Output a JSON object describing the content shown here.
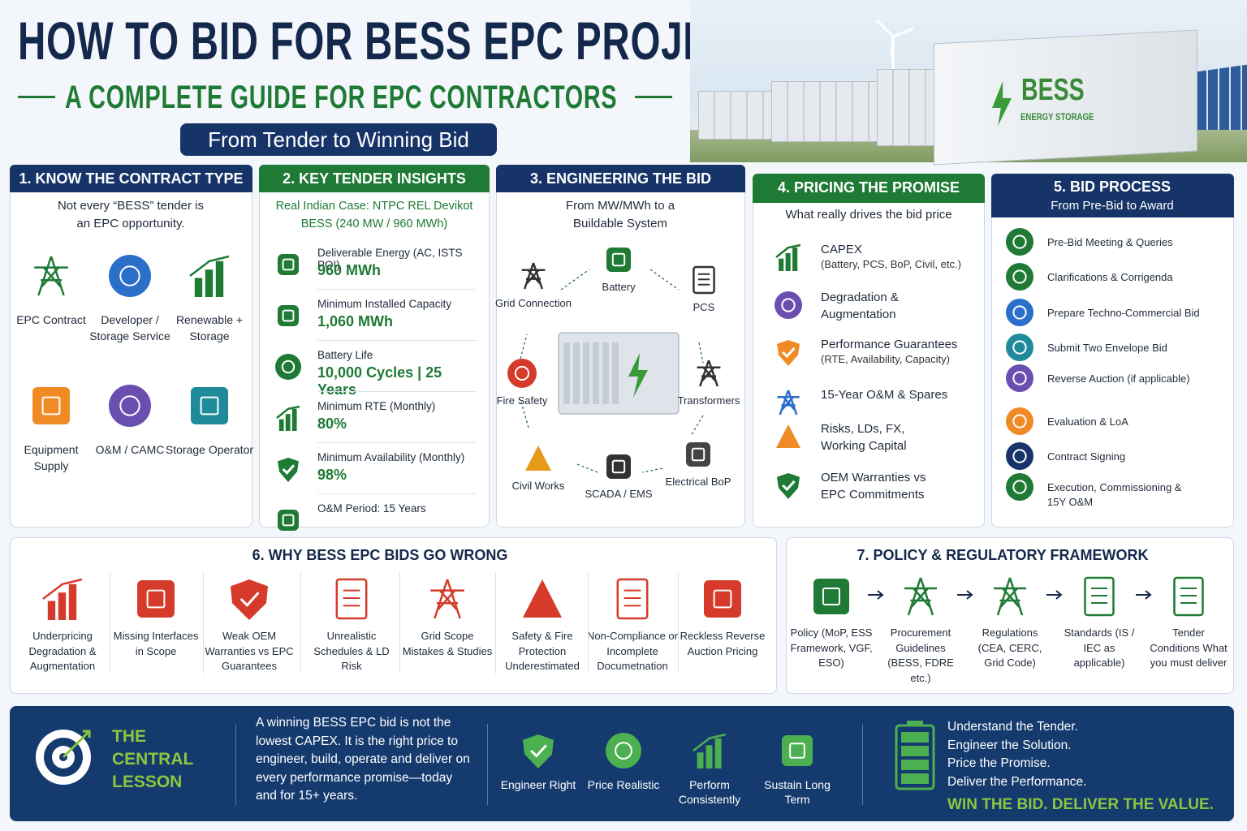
{
  "header": {
    "title": "HOW TO BID FOR BESS EPC PROJECTS",
    "subtitle": "A COMPLETE GUIDE FOR EPC CONTRACTORS",
    "tagline": "From Tender to Winning Bid",
    "image_label": "BESS",
    "image_sublabel": "ENERGY STORAGE"
  },
  "contract_types": {
    "title": "1. KNOW THE CONTRACT TYPE",
    "intro": "Not every “BESS” tender is an EPC opportunity.",
    "items": [
      "EPC Contract",
      "Developer / Storage Service",
      "Renewable + Storage",
      "Equipment Supply",
      "O&M / CAMC",
      "Storage Operator"
    ]
  },
  "tender_insights": {
    "title": "2. KEY TENDER INSIGHTS",
    "case": "Real Indian Case: NTPC REL Devikot BESS (240 MW / 960 MWh)",
    "items": [
      {
        "label": "Deliverable Energy (AC, ISTS POI)",
        "value": "960 MWh"
      },
      {
        "label": "Minimum Installed Capacity",
        "value": "1,060 MWh"
      },
      {
        "label": "Battery Life",
        "value": "10,000 Cycles | 25 Years"
      },
      {
        "label": "Minimum RTE (Monthly)",
        "value": "80%"
      },
      {
        "label": "Minimum Availability (Monthly)",
        "value": "98%"
      },
      {
        "label": "O&M Period: 15 Years"
      }
    ]
  },
  "engineering": {
    "title": "3. ENGINEERING THE BID",
    "intro": "From MW/MWh to a Buildable System",
    "components": [
      "Grid Connection",
      "Battery",
      "PCS",
      "Transformers",
      "Electrical BoP",
      "SCADA / EMS",
      "Civil Works",
      "Fire Safety"
    ]
  },
  "pricing": {
    "title": "4. PRICING THE PROMISE",
    "intro": "What really drives the bid price",
    "items": [
      {
        "label": "CAPEX",
        "detail": "(Battery, PCS, BoP, Civil, etc.)"
      },
      {
        "label": "Degradation & Augmentation"
      },
      {
        "label": "Performance Guarantees",
        "detail": "(RTE, Availability, Capacity)"
      },
      {
        "label": "15-Year O&M & Spares"
      },
      {
        "label": "Risks, LDs, FX, Working Capital"
      },
      {
        "label": "OEM Warranties vs EPC Commitments"
      }
    ]
  },
  "bid_process": {
    "title": "5. BID PROCESS",
    "subtitle": "From Pre-Bid to Award",
    "steps": [
      "Pre-Bid Meeting & Queries",
      "Clarifications & Corrigenda",
      "Prepare Techno-Commercial Bid",
      "Submit Two Envelope Bid",
      "Reverse Auction (if applicable)",
      "Evaluation & LoA",
      "Contract Signing",
      "Execution, Commissioning & 15Y O&M"
    ]
  },
  "pitfalls": {
    "title": "6. WHY BESS EPC BIDS GO WRONG",
    "items": [
      "Underpricing Degradation & Augmentation",
      "Missing Interfaces in Scope",
      "Weak OEM Warranties vs EPC Guarantees",
      "Unrealistic Schedules & LD Risk",
      "Grid Scope Mistakes & Studies",
      "Safety & Fire Protection Underestimated",
      "Non-Compliance or Incomplete Documetnation",
      "Reckless Reverse Auction Pricing"
    ]
  },
  "policy": {
    "title": "7. POLICY & REGULATORY FRAMEWORK",
    "items": [
      "Policy (MoP, ESS Framework, VGF, ESO)",
      "Procurement Guidelines (BESS, FDRE etc.)",
      "Regulations (CEA, CERC, Grid Code)",
      "Standards (IS / IEC as applicable)",
      "Tender Conditions What you must deliver"
    ]
  },
  "lesson": {
    "title": "THE CENTRAL LESSON",
    "text": "A winning BESS EPC bid is not the lowest CAPEX. It is the right price to engineer, build, operate and deliver on every performance promise—today and for 15+ years.",
    "pillars": [
      "Engineer Right",
      "Price Realistic",
      "Perform Consistently",
      "Sustain Long Term"
    ],
    "mottos": [
      "Understand the Tender.",
      "Engineer the Solution.",
      "Price the Promise.",
      "Deliver the Performance."
    ],
    "closing": "WIN THE BID. DELIVER THE VALUE."
  }
}
